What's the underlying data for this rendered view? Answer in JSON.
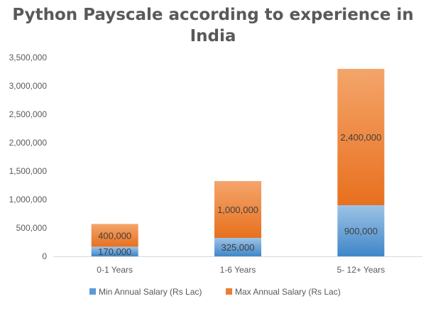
{
  "chart_data": {
    "type": "bar",
    "stacked": true,
    "title": "Python Payscale according to experience in India",
    "title_lines": [
      "Python Payscale according to experience in",
      "India"
    ],
    "categories": [
      "0-1 Years",
      "1-6 Years",
      "5- 12+ Years"
    ],
    "series": [
      {
        "name": "Min Annual Salary (Rs Lac)",
        "values": [
          170000,
          325000,
          900000
        ],
        "color": "#5b9bd5",
        "data_labels": [
          "170,000",
          "325,000",
          "900,000"
        ]
      },
      {
        "name": "Max Annual Salary (Rs Lac)",
        "values": [
          400000,
          1000000,
          2400000
        ],
        "color": "#ed7d31",
        "data_labels": [
          "400,000",
          "1,000,000",
          "2,400,000"
        ]
      }
    ],
    "ylim": [
      0,
      3500000
    ],
    "yticks": [
      0,
      500000,
      1000000,
      1500000,
      2000000,
      2500000,
      3000000,
      3500000
    ],
    "ytick_labels": [
      "0",
      "500,000",
      "1,000,000",
      "1,500,000",
      "2,000,000",
      "2,500,000",
      "3,000,000",
      "3,500,000"
    ],
    "grid": false,
    "legend_position": "bottom",
    "xlabel": "",
    "ylabel": ""
  }
}
